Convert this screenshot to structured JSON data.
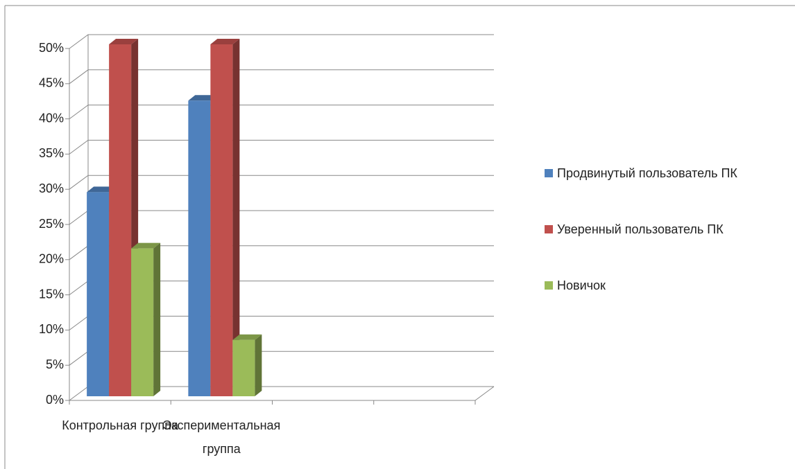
{
  "chart_data": {
    "type": "bar3d",
    "categories": [
      "Контрольная группа",
      "Экспериментальная группа",
      null,
      null
    ],
    "series": [
      {
        "name": "Продвинутый пользователь ПК",
        "color": "#4f81bd",
        "values": [
          29,
          42,
          null,
          null
        ]
      },
      {
        "name": "Уверенный пользователь ПК",
        "color": "#c0504d",
        "values": [
          50,
          50,
          null,
          null
        ]
      },
      {
        "name": "Новичок",
        "color": "#9bbb59",
        "values": [
          21,
          8,
          null,
          null
        ]
      }
    ],
    "ylim": [
      0,
      50
    ],
    "yticks": [
      {
        "value": 0,
        "label": "0%"
      },
      {
        "value": 5,
        "label": "5%"
      },
      {
        "value": 10,
        "label": "10%"
      },
      {
        "value": 15,
        "label": "15%"
      },
      {
        "value": 20,
        "label": "20%"
      },
      {
        "value": 25,
        "label": "25%"
      },
      {
        "value": 30,
        "label": "30%"
      },
      {
        "value": 35,
        "label": "35%"
      },
      {
        "value": 40,
        "label": "40%"
      },
      {
        "value": 45,
        "label": "45%"
      },
      {
        "value": 50,
        "label": "50%"
      }
    ],
    "grid": true,
    "legend": "right"
  }
}
